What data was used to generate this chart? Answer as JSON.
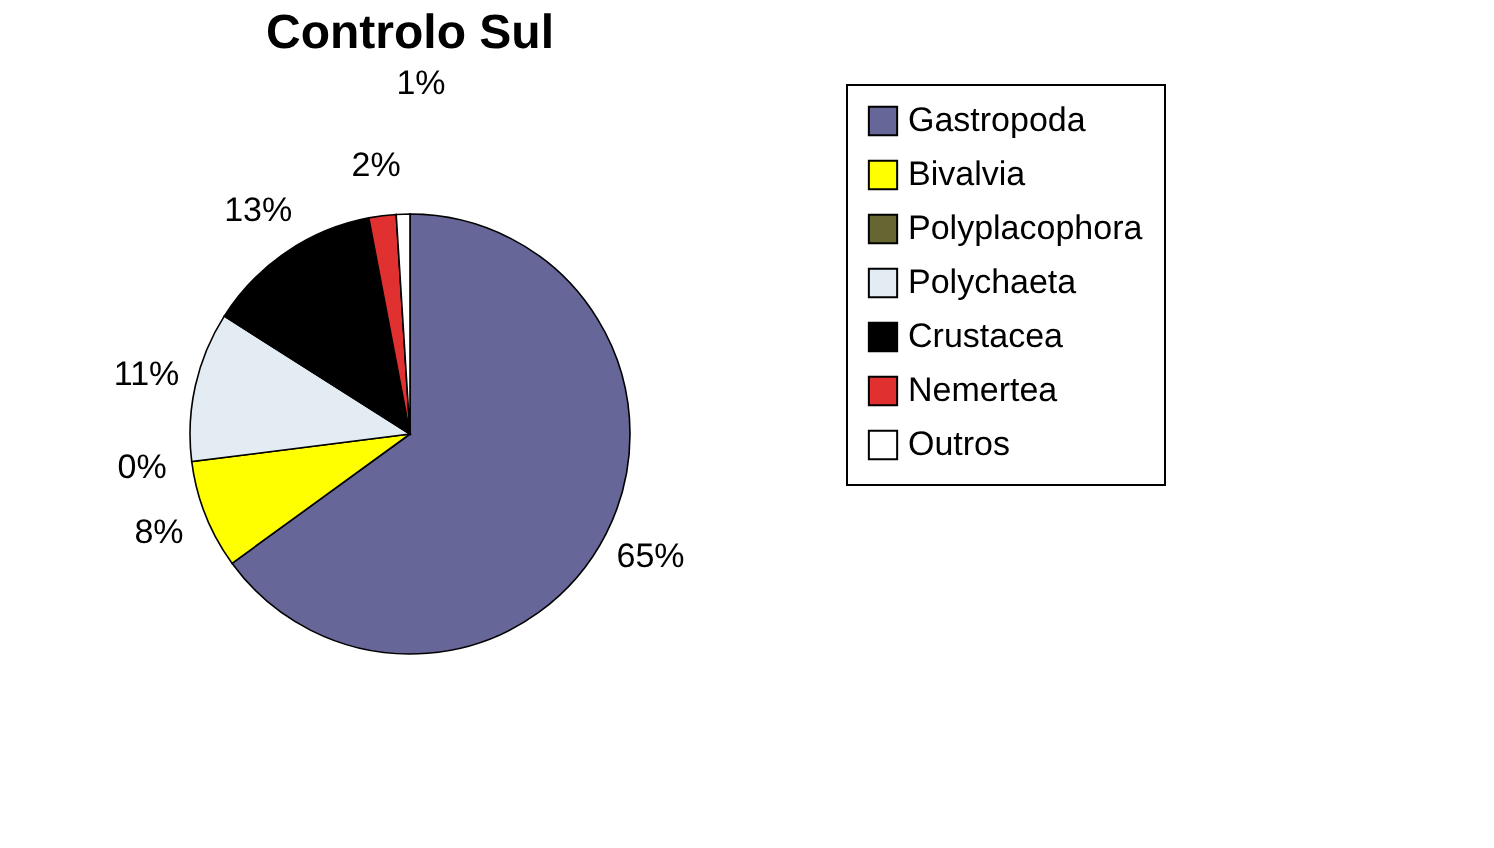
{
  "chart_data": {
    "type": "pie",
    "title": "Controlo Sul",
    "categories": [
      "Gastropoda",
      "Bivalvia",
      "Polyplacophora",
      "Polychaeta",
      "Crustacea",
      "Nemertea",
      "Outros"
    ],
    "values": [
      65,
      8,
      0,
      11,
      13,
      2,
      1
    ],
    "value_labels": [
      "65%",
      "8%",
      "0%",
      "11%",
      "13%",
      "2%",
      "1%"
    ],
    "colors": [
      "#666699",
      "#ffff00",
      "#666633",
      "#e3ecf2",
      "#000000",
      "#e03030",
      "#ffffff"
    ],
    "legend": "right"
  }
}
